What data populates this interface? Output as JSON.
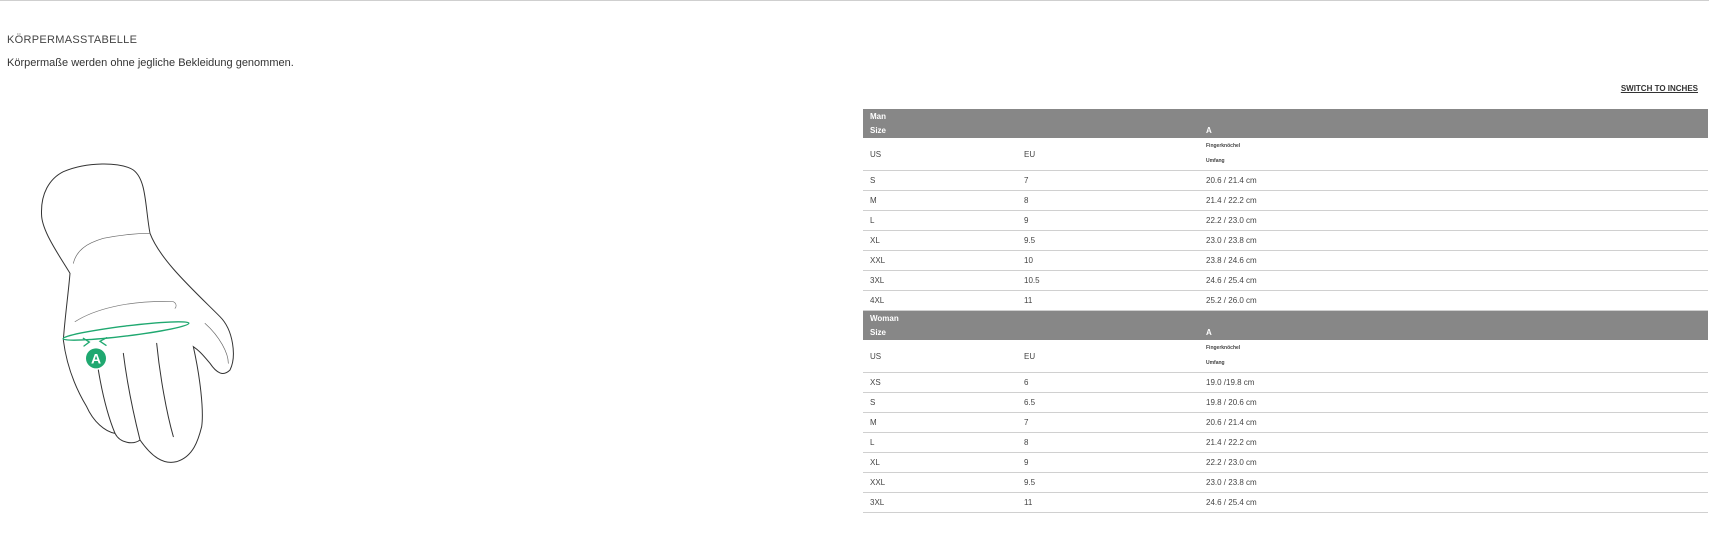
{
  "header": {
    "title": "KÖRPERMASSTABELLE",
    "subtitle": "Körpermaße werden ohne jegliche Bekleidung genommen.",
    "switch_label": "SWITCH TO INCHES"
  },
  "illustration": {
    "marker_label": "A",
    "accent_color": "#1fa870"
  },
  "table": {
    "header_color": "#878787",
    "groups": [
      {
        "name": "Man",
        "size_label": "Size",
        "measure_label": "A",
        "col_us": "US",
        "col_eu": "EU",
        "measure_desc_1": "Fingerknöchel",
        "measure_desc_2": "Umfang",
        "rows": [
          {
            "us": "S",
            "eu": "7",
            "a": "20.6 / 21.4 cm"
          },
          {
            "us": "M",
            "eu": "8",
            "a": "21.4 / 22.2 cm"
          },
          {
            "us": "L",
            "eu": "9",
            "a": "22.2 / 23.0 cm"
          },
          {
            "us": "XL",
            "eu": "9.5",
            "a": "23.0 / 23.8 cm"
          },
          {
            "us": "XXL",
            "eu": "10",
            "a": "23.8 / 24.6 cm"
          },
          {
            "us": "3XL",
            "eu": "10.5",
            "a": "24.6 / 25.4 cm"
          },
          {
            "us": "4XL",
            "eu": "11",
            "a": "25.2 / 26.0 cm"
          }
        ]
      },
      {
        "name": "Woman",
        "size_label": "Size",
        "measure_label": "A",
        "col_us": "US",
        "col_eu": "EU",
        "measure_desc_1": "Fingerknöchel",
        "measure_desc_2": "Umfang",
        "rows": [
          {
            "us": "XS",
            "eu": "6",
            "a": "19.0 /19.8 cm"
          },
          {
            "us": "S",
            "eu": "6.5",
            "a": "19.8 / 20.6 cm"
          },
          {
            "us": "M",
            "eu": "7",
            "a": "20.6 / 21.4 cm"
          },
          {
            "us": "L",
            "eu": "8",
            "a": "21.4 / 22.2 cm"
          },
          {
            "us": "XL",
            "eu": "9",
            "a": "22.2 / 23.0 cm"
          },
          {
            "us": "XXL",
            "eu": "9.5",
            "a": "23.0 / 23.8 cm"
          },
          {
            "us": "3XL",
            "eu": "11",
            "a": "24.6 / 25.4 cm"
          }
        ]
      }
    ]
  }
}
